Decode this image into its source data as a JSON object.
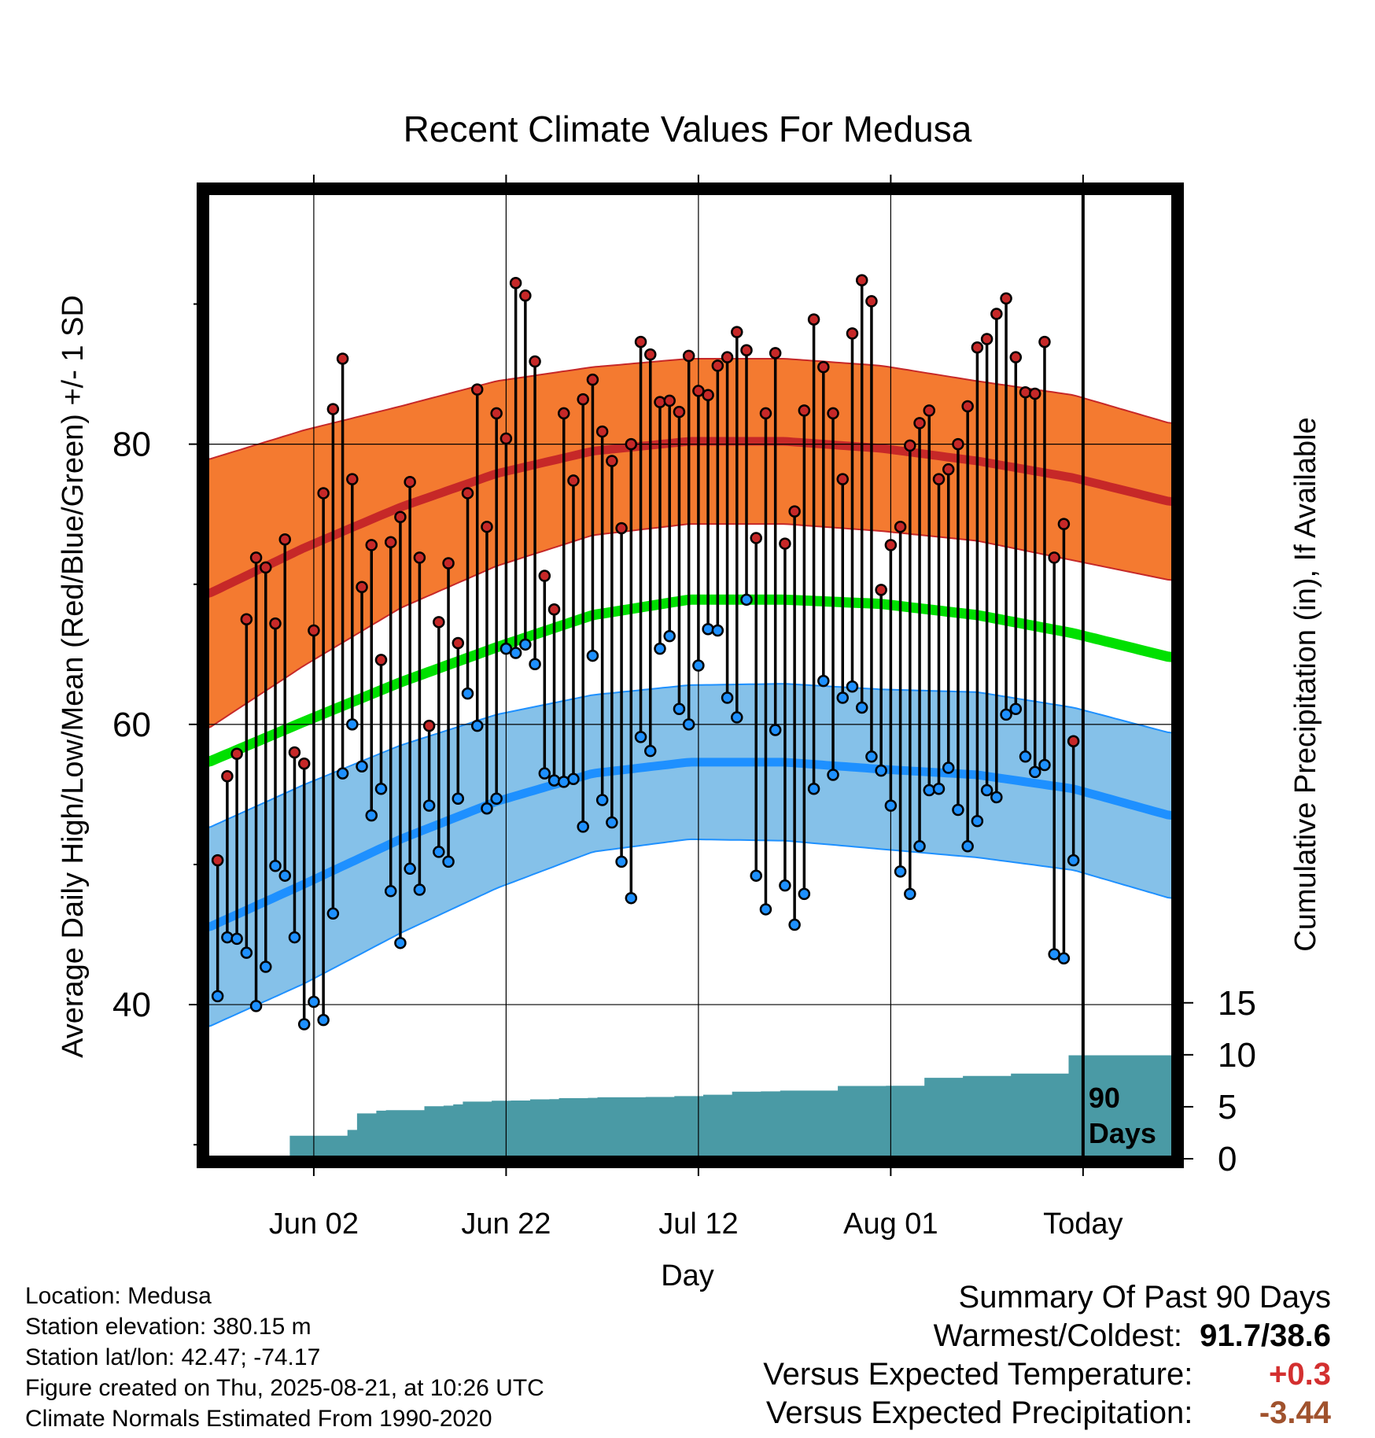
{
  "chart_data": {
    "type": "line",
    "title": "Recent Climate Values For Medusa",
    "xlabel": "Day",
    "ylabel": "Average Daily High/Low/Mean (Red/Blue/Green) +/- 1 SD",
    "y2label": "Cumulative Precipitation (in), If Available",
    "x_ticks": [
      "Jun 02",
      "Jun 22",
      "Jul 12",
      "Aug 01",
      "Today"
    ],
    "x_tick_days": [
      10,
      30,
      50,
      70,
      90
    ],
    "x_range": [
      -1.2,
      99.5
    ],
    "y_ticks": [
      40,
      60,
      80
    ],
    "ylim": [
      29,
      98
    ],
    "y2_ticks": [
      0,
      5,
      10,
      15
    ],
    "y2lim": [
      0,
      93
    ],
    "today_marker": "90\nDays",
    "grid": true,
    "colors": {
      "high": "#c62828",
      "high_band": "#f47a30",
      "low": "#1e90ff",
      "low_band": "#85c1e9",
      "mean": "#00e000",
      "precip": "#4a9aa5",
      "frame": "#000000"
    },
    "normals": {
      "days": [
        -1,
        9,
        19,
        29,
        39,
        49,
        59,
        69,
        79,
        89,
        99
      ],
      "high_mean": [
        69.3,
        72.6,
        75.5,
        77.9,
        79.5,
        80.2,
        80.2,
        79.7,
        78.8,
        77.6,
        75.9
      ],
      "high_sd": [
        9.6,
        8.4,
        7.2,
        6.6,
        6.0,
        5.9,
        5.9,
        5.9,
        5.7,
        5.9,
        5.6
      ],
      "mean": [
        57.3,
        60.2,
        63.0,
        65.5,
        67.8,
        68.9,
        68.9,
        68.6,
        67.8,
        66.5,
        64.8
      ],
      "low_mean": [
        45.5,
        48.6,
        51.8,
        54.5,
        56.5,
        57.3,
        57.3,
        56.8,
        56.4,
        55.4,
        53.5
      ],
      "low_sd": [
        7.1,
        7.1,
        6.7,
        6.2,
        5.6,
        5.5,
        5.6,
        5.7,
        5.9,
        5.8,
        5.9
      ]
    },
    "series": [
      {
        "name": "High",
        "values": [
          50.3,
          56.3,
          57.9,
          67.5,
          71.9,
          71.2,
          67.2,
          73.2,
          58.0,
          57.2,
          66.7,
          76.5,
          82.5,
          86.1,
          77.5,
          69.8,
          72.8,
          64.6,
          73.0,
          74.8,
          77.3,
          71.9,
          59.9,
          67.3,
          71.5,
          65.8,
          76.5,
          83.9,
          74.1,
          82.2,
          80.4,
          91.5,
          90.6,
          85.9,
          70.6,
          68.2,
          82.2,
          77.4,
          83.2,
          84.6,
          80.9,
          78.8,
          74.0,
          80.0,
          87.3,
          86.4,
          83.0,
          83.1,
          82.3,
          86.3,
          83.8,
          83.5,
          85.6,
          86.2,
          88.0,
          86.7,
          73.3,
          82.2,
          86.5,
          72.9,
          75.2,
          82.4,
          88.9,
          85.5,
          82.2,
          77.5,
          87.9,
          91.7,
          90.2,
          69.6,
          72.8,
          74.1,
          79.9,
          81.5,
          82.4,
          77.5,
          78.2,
          80.0,
          82.7,
          86.9,
          87.5,
          89.3,
          90.4,
          86.2,
          83.7,
          83.6,
          87.3,
          71.9,
          74.3,
          58.8
        ]
      },
      {
        "name": "Low",
        "values": [
          40.6,
          44.8,
          44.7,
          43.7,
          39.9,
          42.7,
          49.9,
          49.2,
          44.8,
          38.6,
          40.2,
          38.9,
          46.5,
          56.5,
          60.0,
          57.0,
          53.5,
          55.4,
          48.1,
          44.4,
          49.7,
          48.2,
          54.2,
          50.9,
          50.2,
          54.7,
          62.2,
          59.9,
          54.0,
          54.7,
          65.4,
          65.1,
          65.7,
          64.3,
          56.5,
          56.0,
          55.9,
          56.1,
          52.7,
          64.9,
          54.6,
          53.0,
          50.2,
          47.6,
          59.1,
          58.1,
          65.4,
          66.3,
          61.1,
          60.0,
          64.2,
          66.8,
          66.7,
          61.9,
          60.5,
          68.9,
          49.2,
          46.8,
          59.6,
          48.5,
          45.7,
          47.9,
          55.4,
          63.1,
          56.4,
          61.9,
          62.7,
          61.2,
          57.7,
          56.7,
          54.2,
          49.5,
          47.9,
          51.3,
          55.3,
          55.4,
          56.9,
          53.9,
          51.3,
          53.1,
          55.3,
          54.8,
          60.7,
          61.1,
          57.7,
          56.6,
          57.1,
          43.6,
          43.3,
          50.3
        ]
      },
      {
        "name": "Cumulative Precipitation",
        "values": [
          0,
          0,
          0,
          0,
          0,
          0,
          0,
          0,
          2.22,
          2.22,
          2.22,
          2.22,
          2.22,
          2.22,
          2.77,
          4.36,
          4.36,
          4.62,
          4.68,
          4.68,
          4.68,
          4.68,
          5.05,
          5.05,
          5.11,
          5.23,
          5.49,
          5.49,
          5.49,
          5.58,
          5.58,
          5.6,
          5.6,
          5.71,
          5.71,
          5.73,
          5.83,
          5.83,
          5.83,
          5.86,
          5.91,
          5.91,
          5.91,
          5.91,
          5.91,
          5.94,
          5.94,
          5.94,
          6.02,
          6.02,
          6.02,
          6.16,
          6.16,
          6.16,
          6.45,
          6.45,
          6.45,
          6.48,
          6.48,
          6.55,
          6.55,
          6.55,
          6.55,
          6.55,
          6.55,
          7.0,
          7.0,
          7.0,
          7.0,
          7.0,
          7.02,
          7.02,
          7.02,
          7.02,
          7.79,
          7.79,
          7.79,
          7.79,
          7.96,
          7.96,
          7.96,
          7.96,
          7.96,
          8.19,
          8.19,
          8.19,
          8.19,
          8.19,
          8.19,
          9.95,
          9.95,
          9.95,
          9.95,
          9.95,
          9.95,
          9.95,
          9.95,
          9.95
        ]
      }
    ]
  },
  "footer": {
    "location": "Location: Medusa",
    "elevation": "Station elevation: 380.15 m",
    "latlon": "Station lat/lon: 42.47; -74.17",
    "created": "Figure created on Thu, 2025-08-21, at 10:26 UTC",
    "normals_source": "Climate Normals Estimated From 1990-2020"
  },
  "summary": {
    "heading": "Summary Of Past 90 Days",
    "warmest_coldest_label": "Warmest/Coldest:",
    "warmest_coldest_value": "91.7/38.6",
    "temp_label": "Versus Expected Temperature:",
    "temp_value": "+0.3",
    "temp_color": "#d32f2f",
    "precip_label": "Versus Expected Precipitation:",
    "precip_value": "-3.44",
    "precip_color": "#a0522d"
  }
}
